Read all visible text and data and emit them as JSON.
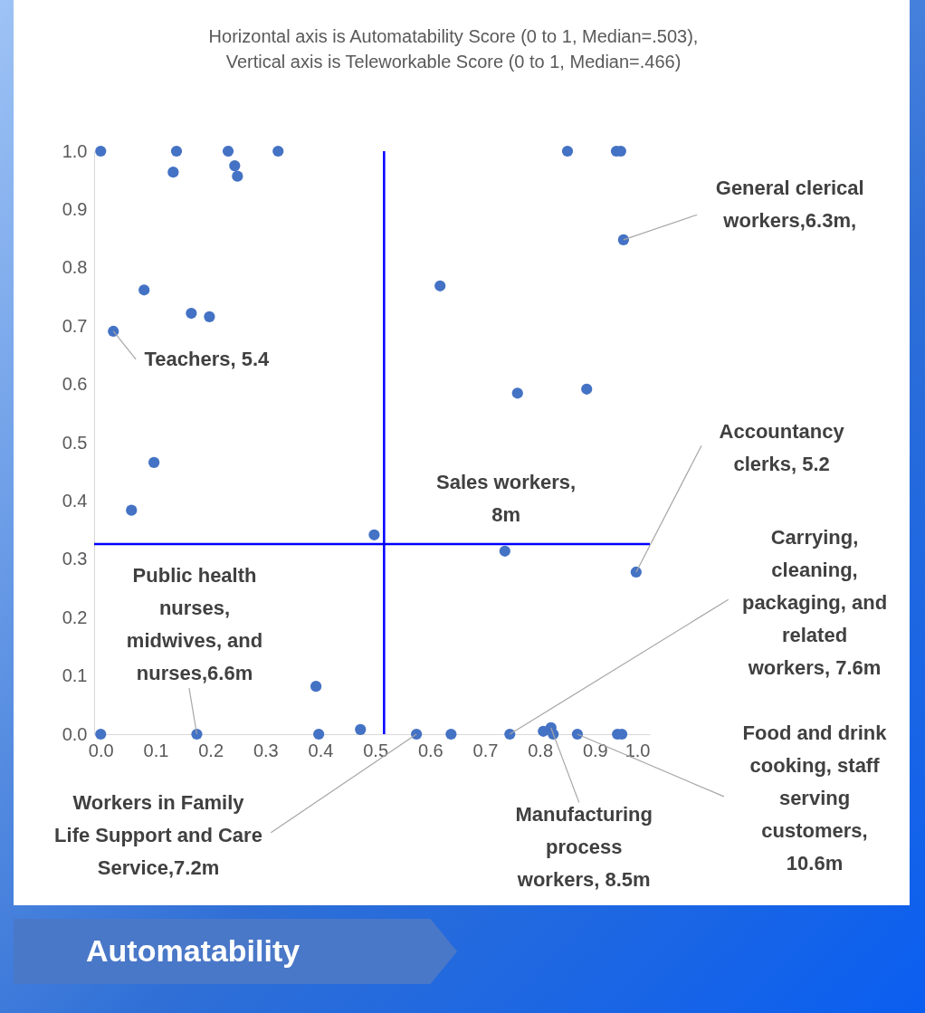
{
  "chart_data": {
    "type": "scatter",
    "title": "Horizontal axis is Automatability Score (0 to 1, Median=.503),",
    "subtitle": "Vertical axis is Teleworkable Score (0 to 1, Median=.466)",
    "series": [
      {
        "color": "#4472c4",
        "x": [
          0,
          0.138,
          0.232,
          0.323,
          0.85,
          0.939,
          0.947,
          0.132,
          0.244,
          0.249,
          0.952,
          0.079,
          0.618,
          0.165,
          0.198,
          0.023,
          0.759,
          0.885,
          0.097,
          0.056,
          0.498,
          0.736,
          0.975,
          0.392,
          0,
          0.175,
          0.397,
          0.473,
          0.575,
          0.638,
          0.745,
          0.806,
          0.82,
          0.824,
          0.868,
          0.941,
          0.949
        ],
        "values": [
          1,
          1,
          1,
          1,
          1,
          1,
          1,
          0.964,
          0.975,
          0.957,
          0.848,
          0.762,
          0.769,
          0.722,
          0.716,
          0.691,
          0.585,
          0.592,
          0.466,
          0.384,
          0.342,
          0.314,
          0.278,
          0.082,
          0,
          0,
          0,
          0.008,
          0,
          0,
          0,
          0.005,
          0.011,
          0,
          0,
          0,
          0
        ]
      }
    ],
    "marker": "circle",
    "xlim": [
      -0.012,
      1
    ],
    "ylim": [
      0,
      1
    ],
    "xticks": [
      {
        "value": 0,
        "label": "0.0"
      },
      {
        "value": 0.1,
        "label": "0.1"
      },
      {
        "value": 0.2,
        "label": "0.2"
      },
      {
        "value": 0.3,
        "label": "0.3"
      },
      {
        "value": 0.4,
        "label": "0.4"
      },
      {
        "value": 0.5,
        "label": "0.5"
      },
      {
        "value": 0.6,
        "label": "0.6"
      },
      {
        "value": 0.7,
        "label": "0.7"
      },
      {
        "value": 0.8,
        "label": "0.8"
      },
      {
        "value": 0.9,
        "label": "0.9"
      },
      {
        "value": 1,
        "label": "1.0"
      }
    ],
    "yticks": [
      {
        "value": 0,
        "label": "0.0"
      },
      {
        "value": 0.1,
        "label": "0.1"
      },
      {
        "value": 0.2,
        "label": "0.2"
      },
      {
        "value": 0.3,
        "label": "0.3"
      },
      {
        "value": 0.4,
        "label": "0.4"
      },
      {
        "value": 0.5,
        "label": "0.5"
      },
      {
        "value": 0.6,
        "label": "0.6"
      },
      {
        "value": 0.7,
        "label": "0.7"
      },
      {
        "value": 0.8,
        "label": "0.8"
      },
      {
        "value": 0.9,
        "label": "0.9"
      },
      {
        "value": 1,
        "label": "1.0"
      }
    ],
    "ref_lines": [
      {
        "axis": "x",
        "value": 0.516,
        "color": "#0000ff"
      },
      {
        "axis": "y",
        "value": 0.326,
        "color": "#0000ff"
      }
    ],
    "annotations": [
      {
        "text": "General clerical workers,6.3m,",
        "x": 0.952,
        "y": 0.848
      },
      {
        "text": "Teachers, 5.4",
        "x": 0.023,
        "y": 0.691
      },
      {
        "text": "Accountancy clerks, 5.2",
        "x": 0.975,
        "y": 0.278
      },
      {
        "text": "Sales workers, 8m",
        "x": 0.736,
        "y": 0.314
      },
      {
        "text": "Carrying, cleaning, packaging, and related workers, 7.6m",
        "x": 0.745,
        "y": 0
      },
      {
        "text": "Public health nurses, midwives, and nurses,6.6m",
        "x": 0.175,
        "y": 0
      },
      {
        "text": "Food and drink cooking, staff serving customers, 10.6m",
        "x": 0.868,
        "y": 0
      },
      {
        "text": "Manufacturing process workers, 8.5m",
        "x": 0.82,
        "y": 0.011
      },
      {
        "text": "Workers in Family Life Support and Care Service,7.2m",
        "x": 0.575,
        "y": 0
      },
      "Automatability"
    ]
  }
}
